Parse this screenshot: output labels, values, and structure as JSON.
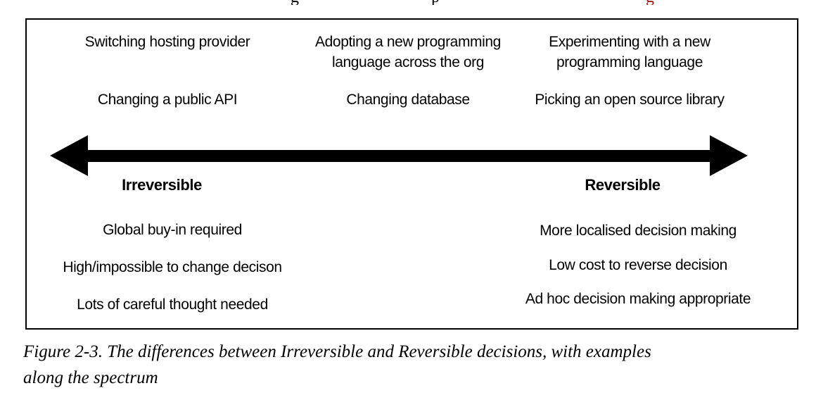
{
  "page": {
    "background": "#ffffff",
    "text_color": "#000000",
    "border_color": "#000000",
    "link_red": "#9e1a1a"
  },
  "cropped_top_line": {
    "note": "only descender fragments of a cropped serif text line are visible",
    "fragments": [
      {
        "char": "g",
        "color": "#000000"
      },
      {
        "char": "p",
        "color": "#000000"
      },
      {
        "char": "g",
        "color": "#9e1a1a"
      }
    ]
  },
  "figure": {
    "examples": {
      "left": [
        "Switching hosting provider",
        "Changing a public API"
      ],
      "middle": [
        "Adopting a new programming language across the org",
        "Changing database"
      ],
      "right": [
        "Experimenting with a new programming language",
        "Picking an open source library"
      ]
    },
    "spectrum": {
      "left_label": "Irreversible",
      "right_label": "Reversible",
      "arrow_color": "#000000"
    },
    "irreversible_traits": [
      "Global buy-in required",
      "High/impossible to change decison",
      "Lots of careful thought needed"
    ],
    "reversible_traits": [
      "More localised decision making",
      "Low cost to reverse decision",
      "Ad hoc decision making appropriate"
    ]
  },
  "caption": {
    "line1": "Figure 2-3. The differences between Irreversible and Reversible decisions, with examples",
    "line2": "along the spectrum",
    "full_text": "Figure 2-3. The differences between Irreversible and Reversible decisions, with examples along the spectrum"
  }
}
